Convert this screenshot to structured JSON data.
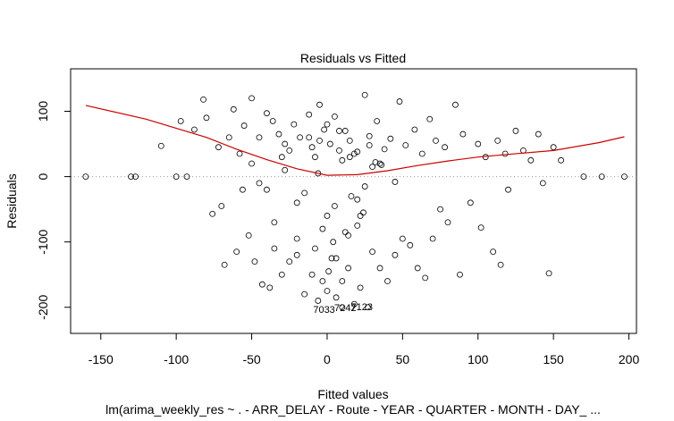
{
  "chart_data": {
    "type": "scatter",
    "title": "Residuals vs Fitted",
    "xlabel": "Fitted values",
    "ylabel": "Residuals",
    "caption": "lm(arima_weekly_res ~ . - ARR_DELAY - Route - YEAR - QUARTER - MONTH - DAY_ ...",
    "xlim": [
      -170,
      205
    ],
    "ylim": [
      -240,
      165
    ],
    "x_ticks": [
      -150,
      -100,
      -50,
      0,
      50,
      100,
      150,
      200
    ],
    "x_tick_labels": [
      "-150",
      "-100",
      "-50",
      "0",
      "50",
      "100",
      "150",
      "200"
    ],
    "y_ticks": [
      -200,
      -100,
      0,
      100
    ],
    "y_tick_labels": [
      "-200",
      "-100",
      "0",
      "100"
    ],
    "reference_line": {
      "y": 0,
      "style": "dotted",
      "color": "#999999"
    },
    "smoother": {
      "name": "",
      "color": "#cc0000",
      "x": [
        -160,
        -120,
        -80,
        -60,
        -40,
        -20,
        0,
        20,
        40,
        60,
        80,
        100,
        120,
        150,
        180,
        197
      ],
      "y": [
        109,
        88,
        60,
        42,
        26,
        12,
        2,
        3,
        9,
        17,
        24,
        30,
        34,
        40,
        52,
        61
      ]
    },
    "series": [
      {
        "name": "",
        "marker": "open-circle",
        "x": [
          -160,
          -130,
          -127,
          -110,
          -100,
          -97,
          -93,
          -88,
          -82,
          -80,
          -76,
          -72,
          -70,
          -68,
          -65,
          -62,
          -60,
          -58,
          -56,
          -55,
          -52,
          -50,
          -48,
          -45,
          -43,
          -40,
          -38,
          -36,
          -35,
          -32,
          -30,
          -28,
          -25,
          -22,
          -20,
          -18,
          -15,
          -12,
          -10,
          -8,
          -6,
          -5,
          -3,
          -2,
          0,
          2,
          3,
          5,
          6,
          8,
          10,
          12,
          14,
          15,
          18,
          20,
          22,
          25,
          27,
          28,
          30,
          33,
          35,
          38,
          40,
          42,
          45,
          48,
          50,
          52,
          55,
          58,
          60,
          63,
          65,
          68,
          70,
          72,
          75,
          78,
          80,
          85,
          88,
          90,
          95,
          100,
          102,
          105,
          110,
          113,
          115,
          118,
          120,
          125,
          130,
          135,
          140,
          143,
          147,
          150,
          155,
          170,
          182,
          197,
          -50,
          -40,
          -30,
          -20,
          -10,
          0,
          10,
          20,
          30,
          -45,
          -25,
          -15,
          -5,
          5,
          15,
          25,
          35,
          45,
          -35,
          -20,
          -8,
          4,
          12,
          22,
          -28,
          -12,
          0,
          8,
          18,
          -3,
          6,
          14,
          20,
          24,
          1,
          10,
          -6,
          16,
          28,
          32,
          36
        ],
        "y": [
          0,
          0,
          0,
          47,
          0,
          85,
          0,
          72,
          118,
          90,
          -57,
          45,
          -45,
          -135,
          60,
          103,
          -115,
          35,
          -20,
          78,
          -90,
          120,
          -130,
          60,
          -165,
          97,
          -170,
          85,
          -110,
          65,
          -150,
          50,
          -130,
          80,
          -120,
          60,
          -180,
          95,
          -150,
          30,
          -190,
          110,
          -160,
          72,
          -175,
          50,
          -125,
          92,
          -185,
          40,
          -200,
          70,
          -140,
          55,
          -195,
          38,
          -170,
          125,
          -200,
          62,
          -115,
          85,
          -140,
          42,
          -160,
          58,
          -120,
          115,
          -95,
          48,
          -105,
          72,
          -140,
          35,
          -155,
          88,
          -95,
          55,
          -50,
          45,
          -70,
          110,
          -150,
          65,
          -40,
          50,
          -78,
          30,
          -115,
          55,
          -135,
          35,
          -20,
          70,
          40,
          25,
          65,
          -10,
          -148,
          45,
          25,
          0,
          0,
          0,
          20,
          -20,
          30,
          -40,
          45,
          -60,
          25,
          -35,
          15,
          -10,
          40,
          -25,
          55,
          -45,
          30,
          -15,
          20,
          -8,
          -70,
          -95,
          -110,
          -100,
          -85,
          -60,
          10,
          60,
          80,
          70,
          35,
          -80,
          -125,
          -90,
          -75,
          -55,
          -145,
          -160,
          5,
          -30,
          48,
          22,
          18
        ]
      }
    ],
    "annotations": [
      {
        "text": "7033",
        "x": -2,
        "y": -203
      },
      {
        "text": "7242",
        "x": 12,
        "y": -200
      },
      {
        "text": "7123",
        "x": 23,
        "y": -199
      }
    ]
  }
}
